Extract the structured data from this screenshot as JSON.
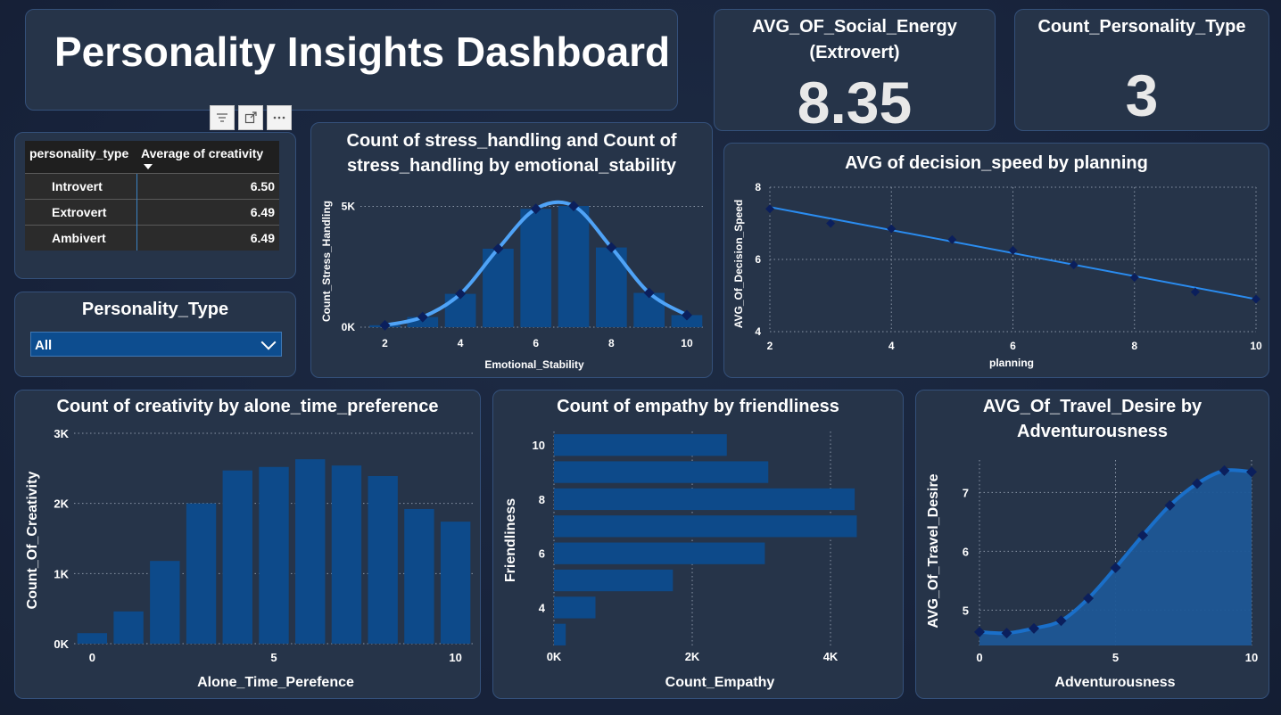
{
  "header": {
    "title": "Personality Insights Dashboard"
  },
  "kpi_social": {
    "title_line1": "AVG_OF_Social_Energy",
    "title_line2": "(Extrovert)",
    "value": "8.35"
  },
  "kpi_count": {
    "title": "Count_Personality_Type",
    "value": "3"
  },
  "table": {
    "headers": [
      "personality_type",
      "Average of creativity"
    ],
    "rows": [
      {
        "type": "Introvert",
        "value": "6.50"
      },
      {
        "type": "Extrovert",
        "value": "6.49"
      },
      {
        "type": "Ambivert",
        "value": "6.49"
      }
    ]
  },
  "toolbar": {
    "icons": [
      "filter-icon",
      "focus-mode-icon",
      "more-options-icon"
    ]
  },
  "slicer": {
    "title": "Personality_Type",
    "selected": "All"
  },
  "colors": {
    "bar": "#0d4a8a",
    "line": "#4fa3f7",
    "marker": "#0b1f5c",
    "trend": "#2a8cf0",
    "area": "#1d5796"
  },
  "chart_data": [
    {
      "id": "stress",
      "type": "bar",
      "title": "Count of stress_handling and Count of stress_handling by emotional_stability",
      "xlabel": "Emotional_Stability",
      "ylabel": "Count_Stress_Handling",
      "x": [
        2,
        3,
        4,
        5,
        6,
        7,
        8,
        9,
        10
      ],
      "values": [
        80,
        420,
        1380,
        3250,
        4900,
        5020,
        3300,
        1420,
        500
      ],
      "line_values": [
        80,
        420,
        1380,
        3250,
        4900,
        5020,
        3300,
        1420,
        500
      ],
      "xticks": [
        "2",
        "4",
        "6",
        "8",
        "10"
      ],
      "yticks": [
        "0K",
        "5K"
      ],
      "ylim": [
        0,
        5500
      ]
    },
    {
      "id": "decision",
      "type": "scatter",
      "title": "AVG of decision_speed by planning",
      "xlabel": "planning",
      "ylabel": "AVG_Of_Decision_Speed",
      "x": [
        2,
        3,
        4,
        5,
        6,
        7,
        8,
        9,
        10
      ],
      "values": [
        7.4,
        7.0,
        6.85,
        6.55,
        6.25,
        5.85,
        5.5,
        5.1,
        4.9
      ],
      "trend": [
        7.45,
        4.9
      ],
      "xticks": [
        "2",
        "4",
        "6",
        "8",
        "10"
      ],
      "yticks": [
        "4",
        "6",
        "8"
      ],
      "xlim": [
        2,
        10
      ],
      "ylim": [
        4,
        8
      ]
    },
    {
      "id": "creativity",
      "type": "bar",
      "title": "Count of creativity by alone_time_preference",
      "xlabel": "Alone_Time_Perefence",
      "ylabel": "Count_Of_Creativity",
      "x": [
        0,
        1,
        2,
        3,
        4,
        5,
        6,
        7,
        8,
        9,
        10
      ],
      "values": [
        150,
        460,
        1180,
        2000,
        2470,
        2520,
        2630,
        2540,
        2390,
        1920,
        1740
      ],
      "xticks": [
        "0",
        "5",
        "10"
      ],
      "yticks": [
        "0K",
        "1K",
        "2K",
        "3K"
      ],
      "ylim": [
        0,
        3000
      ]
    },
    {
      "id": "empathy",
      "type": "bar",
      "orientation": "horizontal",
      "title": "Count of empathy by friendliness",
      "xlabel": "Count_Empathy",
      "ylabel": "Friendliness",
      "categories": [
        10,
        9,
        8,
        7,
        6,
        5,
        4,
        3
      ],
      "values": [
        2500,
        3100,
        4350,
        4380,
        3050,
        1720,
        600,
        170
      ],
      "xticks": [
        "0K",
        "2K",
        "4K"
      ],
      "yticks": [
        "10",
        "8",
        "6",
        "4"
      ],
      "xlim": [
        0,
        4800
      ]
    },
    {
      "id": "travel",
      "type": "area",
      "title": "AVG_Of_Travel_Desire by Adventurousness",
      "xlabel": "Adventurousness",
      "ylabel": "AVG_Of_Travel_Desire",
      "x": [
        0,
        1,
        2,
        3,
        4,
        5,
        6,
        7,
        8,
        9,
        10
      ],
      "values": [
        4.63,
        4.61,
        4.69,
        4.82,
        5.2,
        5.72,
        6.27,
        6.78,
        7.15,
        7.37,
        7.35
      ],
      "xticks": [
        "0",
        "5",
        "10"
      ],
      "yticks": [
        "5",
        "6",
        "7"
      ],
      "xlim": [
        0,
        10
      ],
      "ylim": [
        4.4,
        7.55
      ]
    }
  ]
}
